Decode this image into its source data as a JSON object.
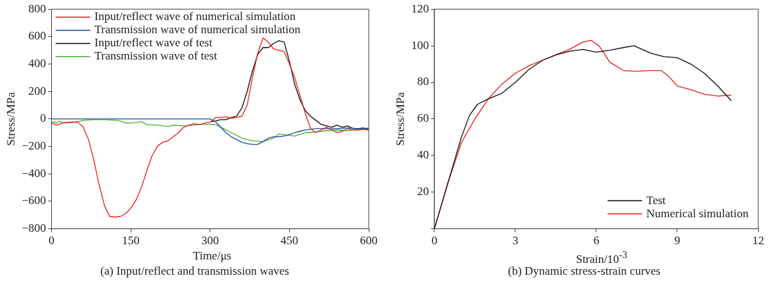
{
  "chart_data": [
    {
      "type": "line",
      "xlabel": "Time/μs",
      "ylabel": "Stress/MPa",
      "annotations": [
        "(a) Input/reflect and transmission waves"
      ],
      "xlim": [
        0,
        600
      ],
      "ylim": [
        -800,
        800
      ],
      "xticks": [
        0,
        150,
        300,
        450,
        600
      ],
      "yticks": [
        -800,
        -600,
        -400,
        -200,
        0,
        200,
        400,
        600,
        800
      ],
      "legend": "top left",
      "series": [
        {
          "name": "Input/reflect wave of numerical simulation",
          "color": "#e8201f",
          "x": [
            0,
            10,
            20,
            40,
            50,
            60,
            70,
            80,
            90,
            100,
            110,
            120,
            130,
            140,
            150,
            160,
            170,
            180,
            190,
            200,
            210,
            220,
            230,
            240,
            250,
            260,
            270,
            280,
            290,
            300,
            310,
            320,
            330,
            340,
            350,
            360,
            370,
            380,
            390,
            400,
            410,
            420,
            430,
            440,
            450,
            460,
            470,
            480,
            490,
            500,
            510,
            520,
            530,
            540,
            550,
            560,
            570,
            580,
            590,
            600
          ],
          "values": [
            -30,
            -45,
            -30,
            -25,
            -25,
            -60,
            -150,
            -300,
            -480,
            -630,
            -710,
            -715,
            -710,
            -690,
            -650,
            -590,
            -500,
            -380,
            -270,
            -200,
            -170,
            -160,
            -130,
            -100,
            -60,
            -45,
            -35,
            -40,
            -30,
            -25,
            10,
            10,
            15,
            5,
            10,
            20,
            100,
            300,
            480,
            590,
            560,
            510,
            500,
            490,
            400,
            300,
            170,
            40,
            -70,
            -100,
            -80,
            -60,
            -80,
            -100,
            -90,
            -70,
            -80,
            -80,
            -75,
            -80
          ]
        },
        {
          "name": "Transmission wave of numerical simulation",
          "color": "#1f4fa8",
          "x": [
            0,
            300,
            310,
            320,
            330,
            340,
            350,
            360,
            370,
            380,
            390,
            400,
            410,
            420,
            430,
            440,
            450,
            460,
            470,
            480,
            490,
            500,
            520,
            540,
            560,
            580,
            600
          ],
          "values": [
            0,
            0,
            -20,
            -60,
            -100,
            -130,
            -150,
            -170,
            -180,
            -185,
            -185,
            -165,
            -140,
            -130,
            -130,
            -125,
            -115,
            -100,
            -90,
            -80,
            -75,
            -70,
            -70,
            -70,
            -65,
            -70,
            -70
          ]
        },
        {
          "name": "Input/reflect wave of test",
          "color": "#111111",
          "x": [
            300,
            310,
            320,
            330,
            340,
            350,
            360,
            370,
            380,
            390,
            400,
            410,
            420,
            430,
            440,
            450,
            460,
            470,
            480,
            490,
            500,
            510,
            520,
            530,
            540,
            550,
            560,
            570,
            580,
            590,
            600
          ],
          "values": [
            -20,
            -15,
            -5,
            -5,
            10,
            20,
            80,
            200,
            350,
            470,
            520,
            520,
            550,
            570,
            560,
            420,
            250,
            140,
            60,
            20,
            -10,
            -40,
            -50,
            -60,
            -45,
            -60,
            -50,
            -70,
            -70,
            -65,
            -80
          ]
        },
        {
          "name": "Transmission wave of test",
          "color": "#4caf3a",
          "x": [
            0,
            5,
            10,
            15,
            20,
            30,
            40,
            50,
            60,
            80,
            100,
            120,
            130,
            140,
            150,
            160,
            170,
            180,
            200,
            220,
            230,
            250,
            270,
            280,
            300,
            310,
            320,
            340,
            360,
            380,
            400,
            420,
            430,
            440,
            460,
            480,
            500,
            520,
            540,
            560,
            580,
            600
          ],
          "values": [
            -30,
            -20,
            -30,
            -15,
            -25,
            -25,
            -20,
            -20,
            -10,
            -5,
            -5,
            -10,
            -15,
            -30,
            -30,
            -25,
            -20,
            -40,
            -45,
            -55,
            -45,
            -50,
            -45,
            -40,
            -40,
            -40,
            -60,
            -100,
            -140,
            -160,
            -165,
            -140,
            -110,
            -115,
            -125,
            -100,
            -95,
            -85,
            -80,
            -85,
            -75,
            -65
          ]
        }
      ]
    },
    {
      "type": "line",
      "xlabel": "Strain/10$^{-3}$",
      "ylabel": "Stress/MPa",
      "annotations": [
        "(b) Dynamic stress-strain curves"
      ],
      "xlim": [
        0,
        12
      ],
      "ylim": [
        0,
        120
      ],
      "xticks": [
        0,
        3,
        6,
        9,
        12
      ],
      "yticks": [
        {
          "value": 0,
          "label": null
        },
        20,
        40,
        60,
        80,
        100,
        120
      ],
      "legend": "bottom right",
      "series": [
        {
          "name": "Test",
          "color": "#111111",
          "x": [
            0,
            0.5,
            1.0,
            1.3,
            1.6,
            2.0,
            2.5,
            3.0,
            3.5,
            4.0,
            4.5,
            5.0,
            5.5,
            6.0,
            6.5,
            7.0,
            7.4,
            8.0,
            8.5,
            9.0,
            9.5,
            10.0,
            10.5,
            11.0
          ],
          "values": [
            0,
            25,
            50,
            62,
            68,
            71,
            74,
            80,
            87,
            92,
            95,
            97,
            98,
            96.5,
            97.5,
            99,
            100,
            96,
            94,
            93.5,
            90,
            85,
            78,
            70
          ]
        },
        {
          "name": "Numerical simulation",
          "color": "#e8201f",
          "x": [
            0,
            0.5,
            1.0,
            1.5,
            2.0,
            2.5,
            3.0,
            3.5,
            4.0,
            4.5,
            5.0,
            5.5,
            5.8,
            6.1,
            6.5,
            7.0,
            7.5,
            8.0,
            8.4,
            8.7,
            9.0,
            9.5,
            10.0,
            10.5,
            11.0
          ],
          "values": [
            0,
            25,
            47,
            60,
            71,
            79,
            85,
            89,
            92,
            95,
            98,
            102,
            103,
            100,
            91,
            86.5,
            86,
            86.5,
            86.5,
            83,
            78,
            76,
            73.5,
            72.5,
            73
          ]
        }
      ]
    }
  ]
}
